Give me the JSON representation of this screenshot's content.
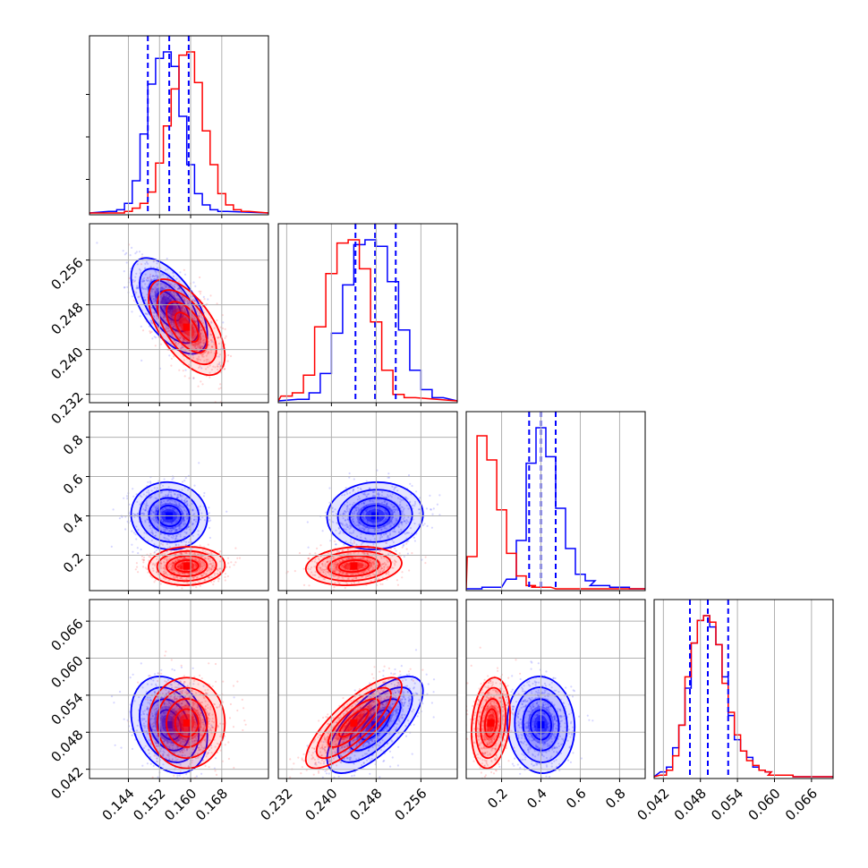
{
  "chart_data": {
    "type": "corner",
    "title": "",
    "colors": {
      "blue": "#0000ff",
      "red": "#ff0000",
      "grid": "#b0b0b0",
      "frame": "#000000"
    },
    "parameters": [
      {
        "range": [
          0.134,
          0.18
        ],
        "ticks": [
          "0.144",
          "0.152",
          "0.160",
          "0.168"
        ],
        "tick_values": [
          0.144,
          0.152,
          0.16,
          0.168
        ]
      },
      {
        "range": [
          0.2305,
          0.2625
        ],
        "ticks": [
          "0.232",
          "0.240",
          "0.248",
          "0.256"
        ],
        "tick_values": [
          0.232,
          0.24,
          0.248,
          0.256
        ]
      },
      {
        "range": [
          0.02,
          0.93
        ],
        "ticks": [
          "0.2",
          "0.4",
          "0.6",
          "0.8"
        ],
        "tick_values": [
          0.2,
          0.4,
          0.6,
          0.8
        ]
      },
      {
        "range": [
          0.0405,
          0.0695
        ],
        "ticks": [
          "0.042",
          "0.048",
          "0.054",
          "0.060",
          "0.066"
        ],
        "tick_values": [
          0.042,
          0.048,
          0.054,
          0.06,
          0.066
        ]
      }
    ],
    "quantile_lines": [
      [
        0.149,
        0.1545,
        0.1595
      ],
      [
        0.2443,
        0.2478,
        0.2515
      ],
      [
        0.34,
        0.4,
        0.475
      ],
      [
        0.0463,
        0.0492,
        0.0525
      ]
    ],
    "series": [
      {
        "color": "blue",
        "mean": [
          0.1545,
          0.2478,
          0.4,
          0.0492
        ],
        "sigma": [
          0.004,
          0.0035,
          0.07,
          0.0032
        ],
        "corr": {
          "1,0": -0.6,
          "2,0": -0.05,
          "2,1": 0.05,
          "3,0": -0.25,
          "3,1": 0.7,
          "3,2": -0.05
        },
        "hist": [
          {
            "x": [
              0.14,
              0.142,
              0.144,
              0.146,
              0.148,
              0.15,
              0.152,
              0.154,
              0.156,
              0.158,
              0.16,
              0.162,
              0.164,
              0.166,
              0.168
            ],
            "y": [
              0.01,
              0.02,
              0.06,
              0.2,
              0.49,
              0.8,
              0.96,
              1.0,
              0.91,
              0.6,
              0.3,
              0.12,
              0.05,
              0.02,
              0.01
            ]
          },
          {
            "x": [
              0.235,
              0.237,
              0.239,
              0.241,
              0.243,
              0.245,
              0.247,
              0.249,
              0.251,
              0.253,
              0.255,
              0.257,
              0.259
            ],
            "y": [
              0.01,
              0.05,
              0.17,
              0.42,
              0.72,
              0.97,
              1.0,
              0.96,
              0.74,
              0.44,
              0.19,
              0.07,
              0.02
            ]
          },
          {
            "x": [
              0.05,
              0.15,
              0.25,
              0.3,
              0.35,
              0.4,
              0.45,
              0.5,
              0.55,
              0.6,
              0.65,
              0.7,
              0.8,
              0.9
            ],
            "y": [
              0.0,
              0.01,
              0.06,
              0.3,
              0.78,
              1.0,
              0.82,
              0.5,
              0.25,
              0.09,
              0.05,
              0.02,
              0.01,
              0.0
            ]
          },
          {
            "x": [
              0.042,
              0.043,
              0.044,
              0.045,
              0.046,
              0.047,
              0.048,
              0.049,
              0.05,
              0.051,
              0.052,
              0.053,
              0.054,
              0.055,
              0.056,
              0.057,
              0.058,
              0.059,
              0.06,
              0.062,
              0.064,
              0.066
            ],
            "y": [
              0.03,
              0.06,
              0.18,
              0.32,
              0.55,
              0.83,
              0.97,
              1.0,
              0.93,
              0.82,
              0.62,
              0.38,
              0.23,
              0.16,
              0.12,
              0.06,
              0.04,
              0.03,
              0.01,
              0.01,
              0.0,
              0.0
            ]
          }
        ]
      },
      {
        "color": "red",
        "mean": [
          0.159,
          0.244,
          0.145,
          0.0495
        ],
        "sigma": [
          0.004,
          0.0035,
          0.04,
          0.003
        ],
        "corr": {
          "1,0": -0.6,
          "2,0": 0.05,
          "2,1": 0.15,
          "3,0": 0.0,
          "3,1": 0.8,
          "3,2": 0.2
        },
        "hist": [
          {
            "x": [
              0.142,
              0.144,
              0.146,
              0.148,
              0.15,
              0.152,
              0.154,
              0.156,
              0.158,
              0.16,
              0.162,
              0.164,
              0.166,
              0.168,
              0.17,
              0.172,
              0.174
            ],
            "y": [
              0.0,
              0.01,
              0.03,
              0.06,
              0.13,
              0.31,
              0.54,
              0.77,
              0.98,
              1.0,
              0.81,
              0.51,
              0.3,
              0.12,
              0.05,
              0.02,
              0.01
            ]
          },
          {
            "x": [
              0.232,
              0.234,
              0.236,
              0.238,
              0.24,
              0.242,
              0.244,
              0.246,
              0.248,
              0.25,
              0.252,
              0.254
            ],
            "y": [
              0.03,
              0.05,
              0.16,
              0.46,
              0.79,
              0.98,
              1.0,
              0.82,
              0.49,
              0.19,
              0.04,
              0.02
            ]
          },
          {
            "x": [
              0.05,
              0.1,
              0.15,
              0.2,
              0.25,
              0.3,
              0.35,
              0.4,
              0.5
            ],
            "y": [
              0.2,
              0.95,
              0.8,
              0.49,
              0.22,
              0.08,
              0.02,
              0.01,
              0.0
            ]
          },
          {
            "x": [
              0.042,
              0.043,
              0.044,
              0.045,
              0.046,
              0.047,
              0.048,
              0.049,
              0.05,
              0.051,
              0.052,
              0.053,
              0.054,
              0.055,
              0.056,
              0.057,
              0.058,
              0.059,
              0.06,
              0.062,
              0.064,
              0.066
            ],
            "y": [
              0.01,
              0.04,
              0.13,
              0.32,
              0.62,
              0.83,
              0.97,
              1.0,
              0.96,
              0.82,
              0.58,
              0.4,
              0.26,
              0.16,
              0.1,
              0.07,
              0.04,
              0.03,
              0.01,
              0.01,
              0.0,
              0.0
            ]
          }
        ]
      }
    ],
    "grid": true,
    "legend": "none"
  }
}
